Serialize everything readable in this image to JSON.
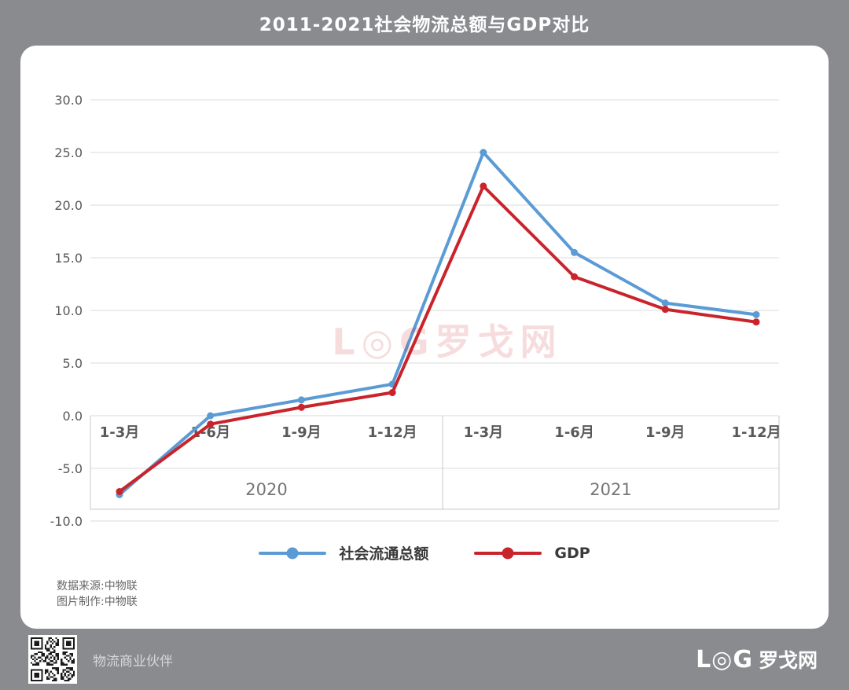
{
  "header": {
    "title": "2011-2021社会物流总额与GDP对比"
  },
  "chart_data": {
    "type": "line",
    "categories": [
      "1-3月",
      "1-6月",
      "1-9月",
      "1-12月",
      "1-3月",
      "1-6月",
      "1-9月",
      "1-12月"
    ],
    "year_groups": [
      {
        "label": "2020",
        "span": 4
      },
      {
        "label": "2021",
        "span": 4
      }
    ],
    "series": [
      {
        "name": "社会流通总额",
        "color": "#5B9BD5",
        "values": [
          -7.5,
          0.0,
          1.5,
          3.0,
          25.0,
          15.5,
          10.7,
          9.6
        ]
      },
      {
        "name": "GDP",
        "color": "#C9242B",
        "values": [
          -7.2,
          -0.8,
          0.8,
          2.2,
          21.8,
          13.2,
          10.1,
          8.9
        ]
      }
    ],
    "ylim": [
      -10,
      30
    ],
    "ytick_step": 5,
    "ytick_labels": [
      "30.0",
      "25.0",
      "20.0",
      "15.0",
      "10.0",
      "5.0",
      "0.0",
      "-5.0",
      "-10.0"
    ],
    "grid": true,
    "legend_position": "bottom"
  },
  "watermark": {
    "text": "L◎G罗戈网"
  },
  "source": {
    "line1": "数据来源:中物联",
    "line2": "图片制作:中物联"
  },
  "footer": {
    "partner": "物流商业伙伴",
    "logo_latin": "L◎G",
    "logo_cn": "罗戈网"
  },
  "colors": {
    "background": "#8A8B8F",
    "card": "#FFFFFF",
    "gridline": "#DBDBDB",
    "axis_border": "#C8C8C8",
    "axis_text": "#595959",
    "year_text": "#757575",
    "series_blue": "#5B9BD5",
    "series_red": "#C9242B"
  }
}
